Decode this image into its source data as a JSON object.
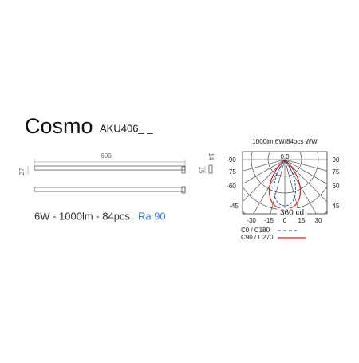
{
  "header": {
    "title": "Cosmo",
    "model": "AKU406_ _"
  },
  "drawing": {
    "length": "600",
    "height": "27",
    "profile_width": "14",
    "profile_height": "15"
  },
  "specs": {
    "power": "6W - 1000lm - 84pcs",
    "ra": "Ra 90"
  },
  "photometry": {
    "title": "1000lm 6W/84pcs WW",
    "left_labels": [
      "-90",
      "-75",
      "-60",
      "-45"
    ],
    "right_labels": [
      "90",
      "75",
      "60",
      "45"
    ],
    "bottom_labels": [
      "-30",
      "-15",
      "0",
      "15",
      "30"
    ],
    "center": "0.0",
    "scale": "360 cd",
    "legend": [
      "C0 / C180",
      "C90 / C270"
    ]
  }
}
